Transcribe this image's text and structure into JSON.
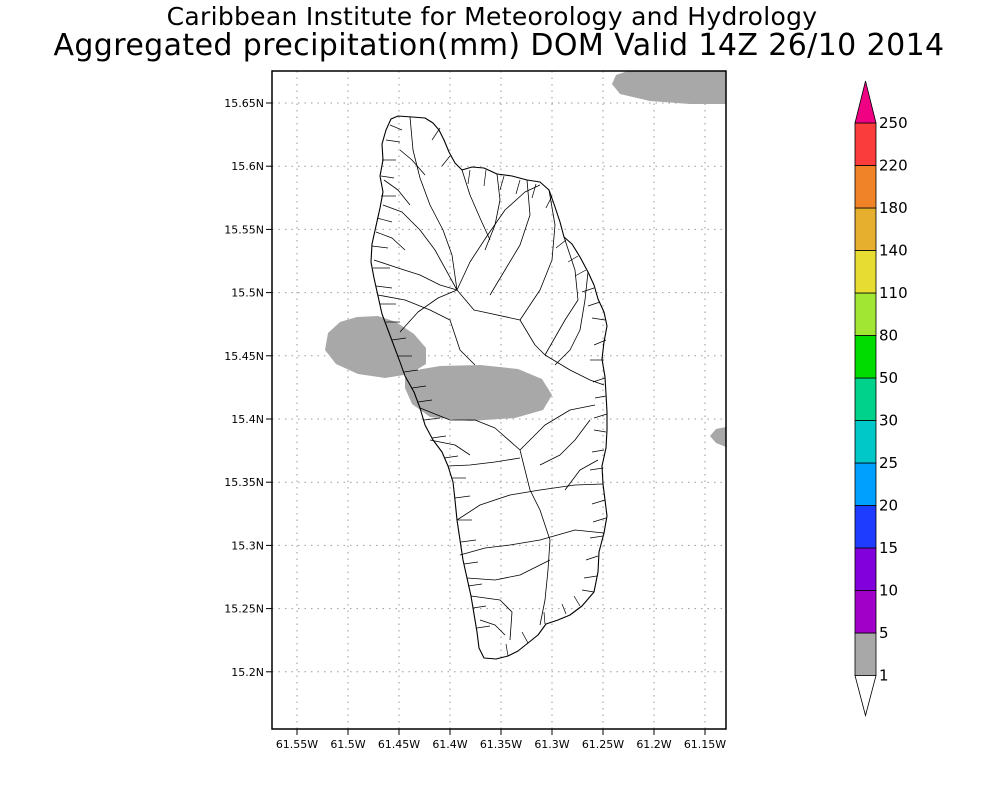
{
  "title": {
    "line1": "Caribbean Institute for Meteorology and Hydrology",
    "line2": "Aggregated precipitation(mm) DOM Valid 14Z 26/10 2014"
  },
  "map": {
    "lat_ticks": [
      "15.65N",
      "15.6N",
      "15.55N",
      "15.5N",
      "15.45N",
      "15.4N",
      "15.35N",
      "15.3N",
      "15.25N",
      "15.2N"
    ],
    "lon_ticks": [
      "61.55W",
      "61.5W",
      "61.45W",
      "61.4W",
      "61.35W",
      "61.3W",
      "61.25W",
      "61.2W",
      "61.15W"
    ],
    "grid": true,
    "precip_color": "#a8a8a8"
  },
  "colorbar": {
    "labels": [
      "1",
      "5",
      "10",
      "15",
      "20",
      "25",
      "30",
      "50",
      "80",
      "110",
      "140",
      "180",
      "220",
      "250"
    ],
    "colors": [
      "#a8a8a8",
      "#a000c8",
      "#8200dc",
      "#1e3cff",
      "#00a0ff",
      "#00c8c8",
      "#00d28c",
      "#00dc00",
      "#a0e632",
      "#e6dc32",
      "#e6af2d",
      "#f08228",
      "#fa3c3c",
      "#f00082"
    ]
  }
}
